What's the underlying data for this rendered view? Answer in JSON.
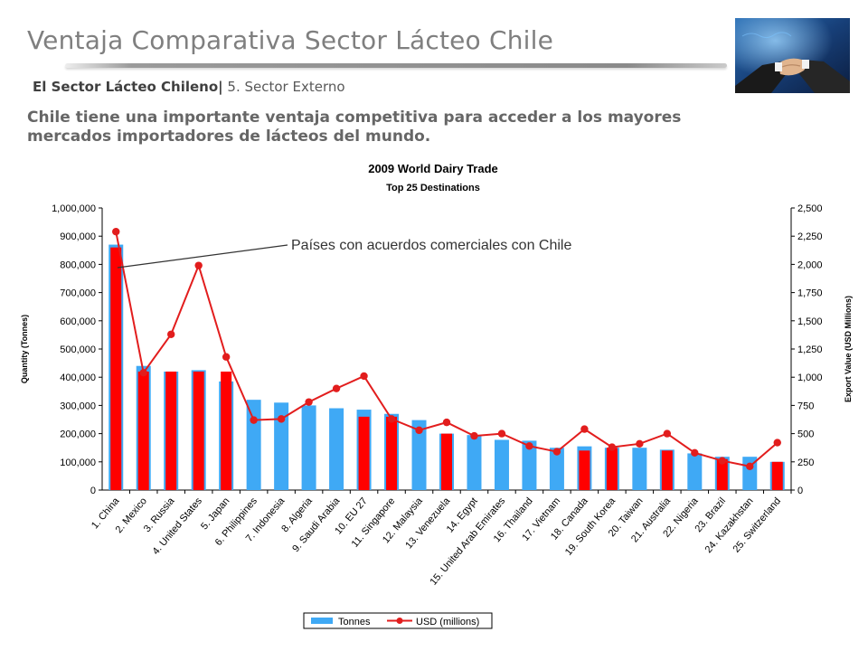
{
  "header": {
    "title": "Ventaja Comparativa Sector Lácteo Chile",
    "subtitle_bold": "El Sector Lácteo Chileno|",
    "subtitle_normal": "5. Sector Externo",
    "headline": "Chile tiene una importante ventaja competitiva para acceder a los mayores mercados importadores de lácteos del mundo."
  },
  "annotation": "Países con acuerdos comerciales con Chile",
  "colors": {
    "tonnes": "#3fa9f5",
    "agreement": "#ff0000",
    "usd_line": "#e21d1d",
    "title_gray": "#7f7f7f"
  },
  "chart_data": {
    "type": "bar",
    "title": "2009 World Dairy Trade",
    "subtitle": "Top 25 Destinations",
    "ylabel": "Quantity (Tonnes)",
    "y2label": "Export Value (USD Millions)",
    "ylim": [
      0,
      1000000
    ],
    "y2lim": [
      0,
      2500
    ],
    "yticks": [
      "1,000,000",
      "900,000",
      "800,000",
      "700,000",
      "600,000",
      "500,000",
      "400,000",
      "300,000",
      "200,000",
      "100,000",
      "0"
    ],
    "y2ticks": [
      "2,500",
      "2,250",
      "2,000",
      "1,750",
      "1,500",
      "1,250",
      "1,000",
      "750",
      "500",
      "250",
      "0"
    ],
    "categories": [
      "1. China",
      "2. Mexico",
      "3. Russia",
      "4. United States",
      "5. Japan",
      "6. Philippines",
      "7. Indonesia",
      "8. Algeria",
      "9. Saudi Arabia",
      "10. EU 27",
      "11. Singapore",
      "12. Malaysia",
      "13. Venezuela",
      "14. Egypt",
      "15. United Arab Emirates",
      "16. Thailand",
      "17. Vietnam",
      "18. Canada",
      "19. South Korea",
      "20. Taiwan",
      "21. Australia",
      "22. Nigeria",
      "23. Brazil",
      "24. Kazakhstan",
      "25. Switzerland"
    ],
    "series": [
      {
        "name": "Tonnes",
        "type": "bar",
        "values": [
          870000,
          440000,
          420000,
          425000,
          385000,
          320000,
          310000,
          300000,
          290000,
          285000,
          270000,
          248000,
          200000,
          195000,
          178000,
          175000,
          150000,
          155000,
          150000,
          150000,
          143000,
          130000,
          118000,
          118000,
          100000
        ]
      },
      {
        "name": "USD (millions)",
        "type": "line",
        "axis": "right",
        "values": [
          2290,
          1040,
          1380,
          1990,
          1180,
          620,
          630,
          780,
          900,
          1010,
          630,
          530,
          600,
          480,
          500,
          390,
          340,
          540,
          380,
          410,
          500,
          330,
          260,
          210,
          420
        ]
      }
    ],
    "agreement_highlight": [
      true,
      true,
      true,
      true,
      true,
      false,
      false,
      false,
      false,
      true,
      true,
      false,
      true,
      false,
      false,
      false,
      false,
      true,
      true,
      false,
      true,
      false,
      true,
      false,
      true
    ],
    "highlight_values": [
      860000,
      420000,
      420000,
      420000,
      420000,
      0,
      0,
      0,
      0,
      260000,
      260000,
      0,
      200000,
      0,
      0,
      0,
      0,
      140000,
      150000,
      0,
      140000,
      0,
      110000,
      0,
      100000
    ],
    "legend": [
      "Tonnes",
      "USD (millions)"
    ],
    "legend_position": "bottom",
    "grid": false
  }
}
